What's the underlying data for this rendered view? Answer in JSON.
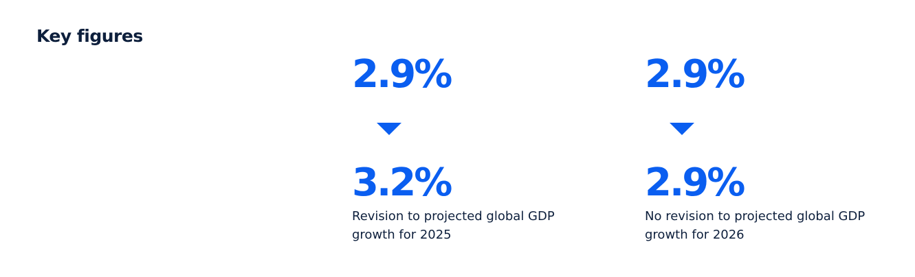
{
  "section": {
    "title": "Key figures"
  },
  "figures": [
    {
      "from_value": "2.9%",
      "to_value": "3.2%",
      "caption": "Revision to projected global GDP growth for 2025",
      "arrow_icon": "triangle-down-icon"
    },
    {
      "from_value": "2.9%",
      "to_value": "2.9%",
      "caption": "No revision to projected global GDP growth for 2026",
      "arrow_icon": "triangle-down-icon"
    }
  ],
  "colors": {
    "accent": "#0a5ef0",
    "text": "#0d1f3c",
    "background": "#ffffff"
  }
}
